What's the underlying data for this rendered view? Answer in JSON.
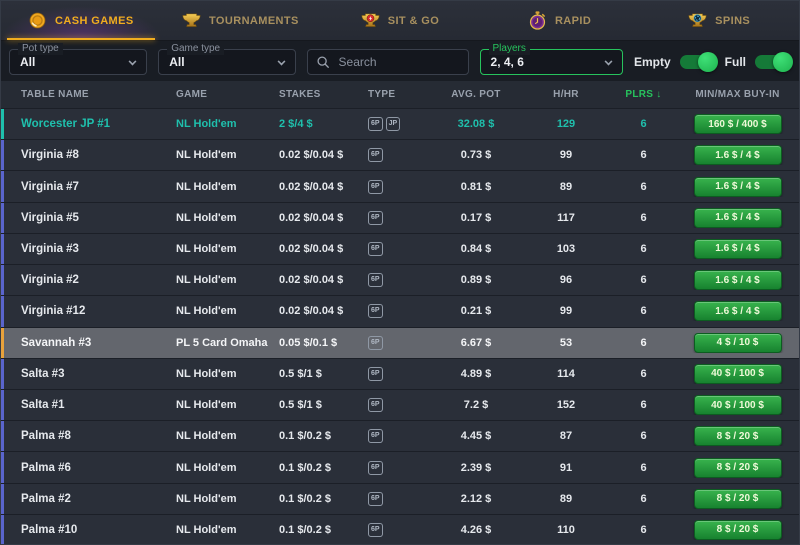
{
  "colors": {
    "accent_gold": "#f0ad1f",
    "accent_green": "#27c35d",
    "accent_teal": "#1fc0ad",
    "accent_orange": "#e8a23c",
    "row_accent_blue": "#5a65cc",
    "buyin_button_green": "#2a9c3f"
  },
  "nav": {
    "tabs": [
      {
        "label": "CASH GAMES",
        "icon": "coin",
        "active": true
      },
      {
        "label": "TOURNAMENTS",
        "icon": "trophy",
        "active": false
      },
      {
        "label": "SIT & GO",
        "icon": "trophy-bolt",
        "active": false
      },
      {
        "label": "RAPID",
        "icon": "stopwatch",
        "active": false
      },
      {
        "label": "SPINS",
        "icon": "trophy-spin",
        "active": false
      }
    ]
  },
  "filters": {
    "pot_type": {
      "label": "Pot type",
      "value": "All"
    },
    "game_type": {
      "label": "Game type",
      "value": "All"
    },
    "search": {
      "placeholder": "Search"
    },
    "players": {
      "label": "Players",
      "value": "2, 4, 6"
    },
    "toggles": [
      {
        "label": "Empty",
        "state": "on"
      },
      {
        "label": "Full",
        "state": "on"
      }
    ]
  },
  "table": {
    "headers": [
      "TABLE NAME",
      "GAME",
      "STAKES",
      "TYPE",
      "AVG. POT",
      "H/HR",
      "PLRS",
      "MIN/MAX BUY-IN"
    ],
    "sort": {
      "column": "PLRS",
      "direction": "desc",
      "glyph": "↓"
    },
    "rows": [
      {
        "name": "Worcester JP #1",
        "game": "NL Hold'em",
        "stakes": "2 $/4 $",
        "types": [
          "6P",
          "JP"
        ],
        "avg_pot": "32.08 $",
        "hhr": "129",
        "plrs": "6",
        "buyin": "160 $ / 400 $",
        "accent": "teal",
        "variant": "selected"
      },
      {
        "name": "Virginia #8",
        "game": "NL Hold'em",
        "stakes": "0.02 $/0.04 $",
        "types": [
          "6P"
        ],
        "avg_pot": "0.73 $",
        "hhr": "99",
        "plrs": "6",
        "buyin": "1.6 $ / 4 $",
        "accent": "blue",
        "variant": ""
      },
      {
        "name": "Virginia #7",
        "game": "NL Hold'em",
        "stakes": "0.02 $/0.04 $",
        "types": [
          "6P"
        ],
        "avg_pot": "0.81 $",
        "hhr": "89",
        "plrs": "6",
        "buyin": "1.6 $ / 4 $",
        "accent": "blue",
        "variant": ""
      },
      {
        "name": "Virginia #5",
        "game": "NL Hold'em",
        "stakes": "0.02 $/0.04 $",
        "types": [
          "6P"
        ],
        "avg_pot": "0.17 $",
        "hhr": "117",
        "plrs": "6",
        "buyin": "1.6 $ / 4 $",
        "accent": "blue",
        "variant": ""
      },
      {
        "name": "Virginia #3",
        "game": "NL Hold'em",
        "stakes": "0.02 $/0.04 $",
        "types": [
          "6P"
        ],
        "avg_pot": "0.84 $",
        "hhr": "103",
        "plrs": "6",
        "buyin": "1.6 $ / 4 $",
        "accent": "blue",
        "variant": ""
      },
      {
        "name": "Virginia #2",
        "game": "NL Hold'em",
        "stakes": "0.02 $/0.04 $",
        "types": [
          "6P"
        ],
        "avg_pot": "0.89 $",
        "hhr": "96",
        "plrs": "6",
        "buyin": "1.6 $ / 4 $",
        "accent": "blue",
        "variant": ""
      },
      {
        "name": "Virginia #12",
        "game": "NL Hold'em",
        "stakes": "0.02 $/0.04 $",
        "types": [
          "6P"
        ],
        "avg_pot": "0.21 $",
        "hhr": "99",
        "plrs": "6",
        "buyin": "1.6 $ / 4 $",
        "accent": "blue",
        "variant": ""
      },
      {
        "name": "Savannah #3",
        "game": "PL 5 Card Omaha",
        "stakes": "0.05 $/0.1 $",
        "types": [
          "6P"
        ],
        "avg_pot": "6.67 $",
        "hhr": "53",
        "plrs": "6",
        "buyin": "4 $ / 10 $",
        "accent": "orange",
        "variant": "highlighted"
      },
      {
        "name": "Salta #3",
        "game": "NL Hold'em",
        "stakes": "0.5 $/1 $",
        "types": [
          "6P"
        ],
        "avg_pot": "4.89 $",
        "hhr": "114",
        "plrs": "6",
        "buyin": "40 $ / 100 $",
        "accent": "blue",
        "variant": ""
      },
      {
        "name": "Salta #1",
        "game": "NL Hold'em",
        "stakes": "0.5 $/1 $",
        "types": [
          "6P"
        ],
        "avg_pot": "7.2 $",
        "hhr": "152",
        "plrs": "6",
        "buyin": "40 $ / 100 $",
        "accent": "blue",
        "variant": ""
      },
      {
        "name": "Palma #8",
        "game": "NL Hold'em",
        "stakes": "0.1 $/0.2 $",
        "types": [
          "6P"
        ],
        "avg_pot": "4.45 $",
        "hhr": "87",
        "plrs": "6",
        "buyin": "8 $ / 20 $",
        "accent": "blue",
        "variant": ""
      },
      {
        "name": "Palma #6",
        "game": "NL Hold'em",
        "stakes": "0.1 $/0.2 $",
        "types": [
          "6P"
        ],
        "avg_pot": "2.39 $",
        "hhr": "91",
        "plrs": "6",
        "buyin": "8 $ / 20 $",
        "accent": "blue",
        "variant": ""
      },
      {
        "name": "Palma #2",
        "game": "NL Hold'em",
        "stakes": "0.1 $/0.2 $",
        "types": [
          "6P"
        ],
        "avg_pot": "2.12 $",
        "hhr": "89",
        "plrs": "6",
        "buyin": "8 $ / 20 $",
        "accent": "blue",
        "variant": ""
      },
      {
        "name": "Palma #10",
        "game": "NL Hold'em",
        "stakes": "0.1 $/0.2 $",
        "types": [
          "6P"
        ],
        "avg_pot": "4.26 $",
        "hhr": "110",
        "plrs": "6",
        "buyin": "8 $ / 20 $",
        "accent": "blue",
        "variant": ""
      }
    ]
  }
}
